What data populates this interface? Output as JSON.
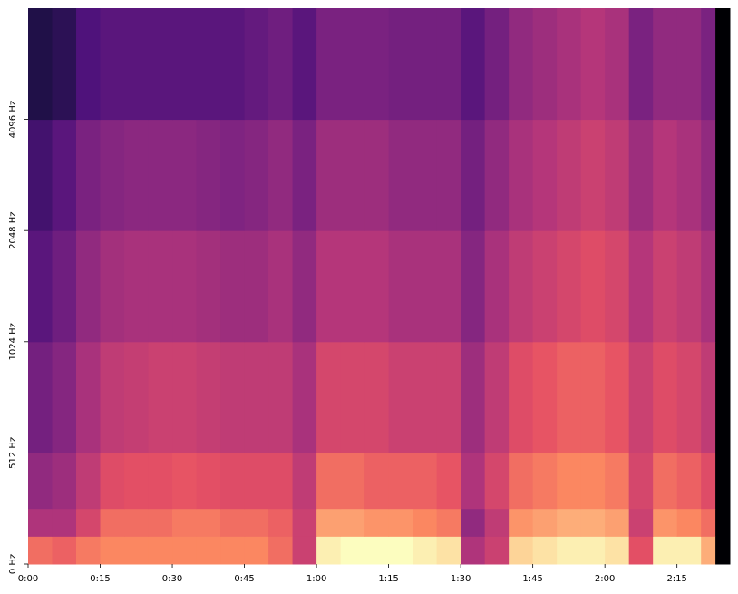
{
  "chart_data": {
    "type": "heatmap",
    "colormap": "magma",
    "xlim": [
      0,
      146
    ],
    "xticks": [
      {
        "value": 0,
        "label": "0:00"
      },
      {
        "value": 15,
        "label": "0:15"
      },
      {
        "value": 30,
        "label": "0:30"
      },
      {
        "value": 45,
        "label": "0:45"
      },
      {
        "value": 60,
        "label": "1:00"
      },
      {
        "value": 75,
        "label": "1:15"
      },
      {
        "value": 90,
        "label": "1:30"
      },
      {
        "value": 105,
        "label": "1:45"
      },
      {
        "value": 120,
        "label": "2:00"
      },
      {
        "value": 135,
        "label": "2:15"
      }
    ],
    "yscale": "symlog",
    "linthresh": 512,
    "ylim": [
      0,
      8192
    ],
    "yticks": [
      {
        "value": 0,
        "label": "0 Hz"
      },
      {
        "value": 512,
        "label": "512 Hz"
      },
      {
        "value": 1024,
        "label": "1024 Hz"
      },
      {
        "value": 2048,
        "label": "2048 Hz"
      },
      {
        "value": 4096,
        "label": "4096 Hz"
      }
    ],
    "x_edges": [
      0,
      5,
      10,
      15,
      20,
      25,
      30,
      35,
      40,
      45,
      50,
      55,
      60,
      65,
      70,
      75,
      80,
      85,
      90,
      95,
      100,
      105,
      110,
      115,
      120,
      125,
      130,
      135,
      140,
      143,
      146
    ],
    "y_edges": [
      0,
      128,
      256,
      512,
      1024,
      2048,
      4096,
      8192
    ],
    "z": [
      [
        -30,
        -32,
        -28,
        -26,
        -26,
        -26,
        -26,
        -26,
        -26,
        -26,
        -30,
        -40,
        -10,
        -8,
        -8,
        -8,
        -10,
        -12,
        -45,
        -40,
        -14,
        -12,
        -10,
        -10,
        -12,
        -35,
        -10,
        -10,
        -20,
        -80
      ],
      [
        -45,
        -45,
        -38,
        -30,
        -30,
        -30,
        -28,
        -28,
        -30,
        -30,
        -32,
        -40,
        -22,
        -22,
        -24,
        -24,
        -26,
        -28,
        -50,
        -42,
        -24,
        -22,
        -20,
        -20,
        -22,
        -40,
        -24,
        -26,
        -30,
        -80
      ],
      [
        -50,
        -48,
        -42,
        -36,
        -35,
        -35,
        -34,
        -35,
        -36,
        -36,
        -36,
        -42,
        -30,
        -30,
        -32,
        -32,
        -32,
        -34,
        -45,
        -38,
        -30,
        -28,
        -26,
        -26,
        -28,
        -38,
        -30,
        -32,
        -36,
        -80
      ],
      [
        -55,
        -52,
        -46,
        -42,
        -41,
        -40,
        -40,
        -41,
        -42,
        -42,
        -42,
        -46,
        -38,
        -38,
        -38,
        -40,
        -40,
        -40,
        -48,
        -42,
        -36,
        -34,
        -32,
        -32,
        -34,
        -40,
        -36,
        -38,
        -42,
        -80
      ],
      [
        -60,
        -56,
        -50,
        -47,
        -46,
        -46,
        -46,
        -47,
        -48,
        -48,
        -46,
        -50,
        -44,
        -44,
        -44,
        -46,
        -46,
        -46,
        -52,
        -46,
        -42,
        -40,
        -38,
        -36,
        -38,
        -44,
        -40,
        -42,
        -46,
        -80
      ],
      [
        -64,
        -60,
        -54,
        -52,
        -51,
        -51,
        -51,
        -52,
        -53,
        -52,
        -50,
        -54,
        -48,
        -48,
        -48,
        -50,
        -50,
        -50,
        -55,
        -50,
        -46,
        -44,
        -42,
        -40,
        -42,
        -48,
        -44,
        -46,
        -50,
        -80
      ],
      [
        -70,
        -68,
        -62,
        -60,
        -60,
        -60,
        -60,
        -60,
        -60,
        -58,
        -56,
        -60,
        -54,
        -54,
        -54,
        -55,
        -55,
        -55,
        -60,
        -55,
        -50,
        -48,
        -46,
        -44,
        -46,
        -54,
        -50,
        -50,
        -54,
        -80
      ]
    ]
  }
}
